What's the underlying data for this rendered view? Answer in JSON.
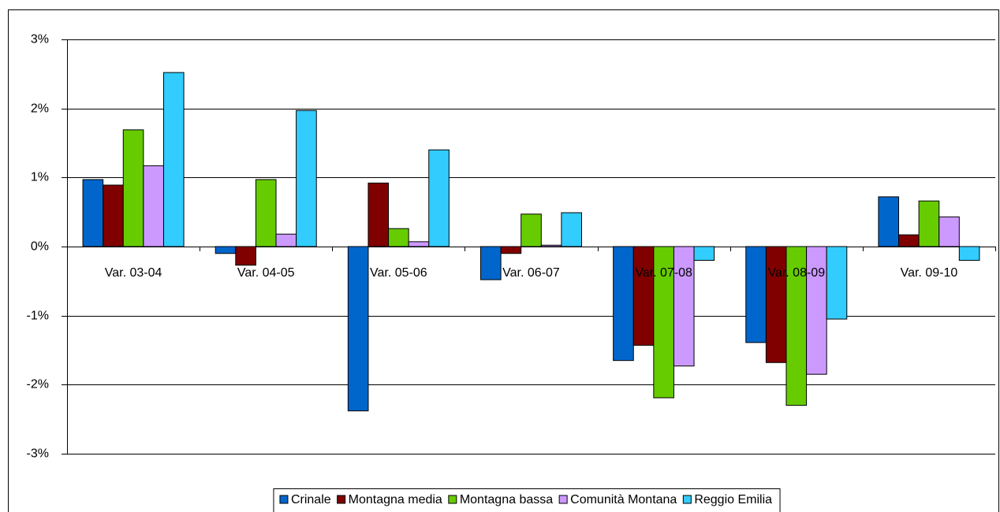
{
  "chart_data": {
    "type": "bar",
    "categories": [
      "Var. 03-04",
      "Var. 04-05",
      "Var. 05-06",
      "Var. 06-07",
      "Var. 07-08",
      "Var. 08-09",
      "Var. 09-10"
    ],
    "series": [
      {
        "name": "Crinale",
        "color": "#0066cc",
        "values": [
          0.97,
          -0.1,
          -2.38,
          -0.48,
          -1.65,
          -1.39,
          0.72
        ]
      },
      {
        "name": "Montagna media",
        "color": "#800000",
        "values": [
          0.89,
          -0.27,
          0.92,
          -0.1,
          -1.43,
          -1.68,
          0.17
        ]
      },
      {
        "name": "Montagna bassa",
        "color": "#66cc00",
        "values": [
          1.69,
          0.97,
          0.26,
          0.47,
          -2.19,
          -2.3,
          0.66
        ]
      },
      {
        "name": "Comunità Montana",
        "color": "#cc99ff",
        "values": [
          1.17,
          0.18,
          0.07,
          0.02,
          -1.73,
          -1.85,
          0.43
        ]
      },
      {
        "name": "Reggio Emilia",
        "color": "#33ccff",
        "values": [
          2.52,
          1.97,
          1.4,
          0.49,
          -0.2,
          -1.05,
          -0.2
        ]
      }
    ],
    "ylim": [
      -3,
      3
    ],
    "yticks": [
      {
        "value": -3,
        "label": "-3%"
      },
      {
        "value": -2,
        "label": "-2%"
      },
      {
        "value": -1,
        "label": "-1%"
      },
      {
        "value": 0,
        "label": "0%"
      },
      {
        "value": 1,
        "label": "1%"
      },
      {
        "value": 2,
        "label": "2%"
      },
      {
        "value": 3,
        "label": "3%"
      }
    ],
    "grid": true,
    "legend": "bottom"
  }
}
